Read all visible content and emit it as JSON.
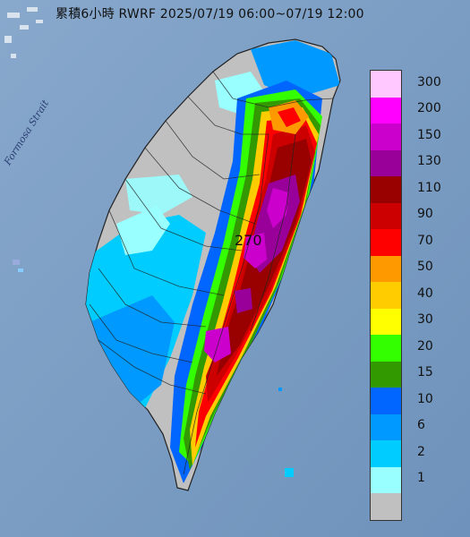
{
  "header": {
    "title": "累積6小時 RWRF 2025/07/19 06:00~07/19 12:00"
  },
  "map": {
    "strait_label": "Formosa Strait",
    "peak_value": "270",
    "colors": {
      "sea": "#7fa0c4",
      "land_no_rain": "#c0c0c0",
      "county_border": "#222222"
    }
  },
  "legend": {
    "items": [
      {
        "label": "300",
        "color": "#ffc8ff"
      },
      {
        "label": "200",
        "color": "#ff00ff"
      },
      {
        "label": "150",
        "color": "#cc00cc"
      },
      {
        "label": "130",
        "color": "#990099"
      },
      {
        "label": "110",
        "color": "#990000"
      },
      {
        "label": "90",
        "color": "#cc0000"
      },
      {
        "label": "70",
        "color": "#ff0000"
      },
      {
        "label": "50",
        "color": "#ff9900"
      },
      {
        "label": "40",
        "color": "#ffcc00"
      },
      {
        "label": "30",
        "color": "#ffff00"
      },
      {
        "label": "20",
        "color": "#33ff00"
      },
      {
        "label": "15",
        "color": "#339900"
      },
      {
        "label": "10",
        "color": "#0066ff"
      },
      {
        "label": "6",
        "color": "#0099ff"
      },
      {
        "label": "2",
        "color": "#00ccff"
      },
      {
        "label": "1",
        "color": "#99ffff"
      },
      {
        "label": "",
        "color": "#c0c0c0"
      }
    ]
  }
}
